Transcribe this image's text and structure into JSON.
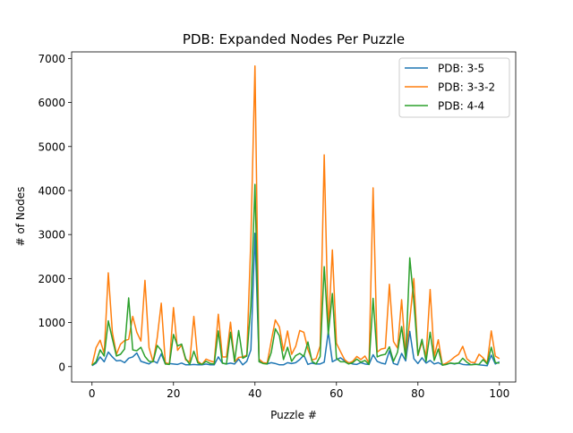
{
  "chart_data": {
    "type": "line",
    "title": "PDB: Expanded Nodes Per Puzzle",
    "xlabel": "Puzzle #",
    "ylabel": "# of Nodes",
    "xlim": [
      -5,
      104
    ],
    "ylim": [
      -350,
      7150
    ],
    "x_ticks": [
      0,
      20,
      40,
      60,
      80,
      100
    ],
    "y_ticks": [
      0,
      1000,
      2000,
      3000,
      4000,
      5000,
      6000,
      7000
    ],
    "grid": false,
    "legend_position": "upper-right",
    "series": [
      {
        "name": "PDB: 3-5",
        "color": "#1f77b4",
        "values": [
          20,
          80,
          220,
          110,
          330,
          220,
          130,
          140,
          90,
          190,
          220,
          310,
          120,
          90,
          60,
          130,
          80,
          290,
          60,
          70,
          60,
          50,
          80,
          40,
          40,
          50,
          40,
          40,
          60,
          40,
          40,
          220,
          80,
          60,
          80,
          60,
          170,
          40,
          120,
          380,
          3030,
          150,
          80,
          60,
          90,
          70,
          40,
          40,
          90,
          70,
          90,
          160,
          260,
          50,
          80,
          60,
          60,
          100,
          790,
          110,
          160,
          200,
          130,
          90,
          60,
          50,
          90,
          60,
          50,
          270,
          120,
          80,
          60,
          360,
          70,
          40,
          300,
          130,
          800,
          180,
          70,
          200,
          80,
          140,
          60,
          90,
          40,
          50,
          80,
          60,
          80,
          50,
          40,
          40,
          60,
          40,
          30,
          20,
          260,
          60,
          110
        ]
      },
      {
        "name": "PDB: 3-3-2",
        "color": "#ff7f0e",
        "values": [
          30,
          430,
          600,
          300,
          2130,
          780,
          280,
          510,
          590,
          620,
          1140,
          780,
          580,
          1960,
          430,
          110,
          650,
          1440,
          90,
          60,
          1340,
          370,
          490,
          150,
          110,
          1140,
          120,
          50,
          170,
          130,
          100,
          1190,
          220,
          220,
          1010,
          110,
          210,
          220,
          260,
          2900,
          6830,
          170,
          90,
          80,
          580,
          1060,
          900,
          360,
          810,
          280,
          460,
          820,
          780,
          390,
          150,
          180,
          470,
          4810,
          790,
          2650,
          530,
          340,
          160,
          80,
          120,
          230,
          160,
          240,
          80,
          4060,
          330,
          400,
          420,
          1870,
          570,
          420,
          1520,
          260,
          1050,
          2000,
          250,
          560,
          230,
          1750,
          230,
          610,
          40,
          80,
          140,
          220,
          280,
          460,
          180,
          100,
          90,
          280,
          200,
          80,
          810,
          240,
          180
        ]
      },
      {
        "name": "PDB: 4-4",
        "color": "#2ca02c",
        "values": [
          30,
          110,
          380,
          240,
          1040,
          630,
          240,
          280,
          400,
          1560,
          380,
          360,
          440,
          230,
          120,
          110,
          480,
          370,
          60,
          50,
          730,
          470,
          510,
          180,
          50,
          350,
          80,
          50,
          120,
          70,
          60,
          810,
          80,
          60,
          780,
          120,
          820,
          190,
          240,
          1380,
          4140,
          110,
          70,
          60,
          320,
          860,
          700,
          160,
          440,
          120,
          250,
          300,
          230,
          560,
          120,
          60,
          230,
          2270,
          730,
          1660,
          190,
          110,
          110,
          60,
          90,
          170,
          100,
          140,
          50,
          1550,
          220,
          260,
          280,
          450,
          120,
          330,
          910,
          180,
          2470,
          1480,
          260,
          620,
          120,
          780,
          140,
          400,
          30,
          50,
          80,
          70,
          80,
          190,
          100,
          40,
          50,
          50,
          160,
          60,
          440,
          90,
          80
        ]
      }
    ]
  }
}
